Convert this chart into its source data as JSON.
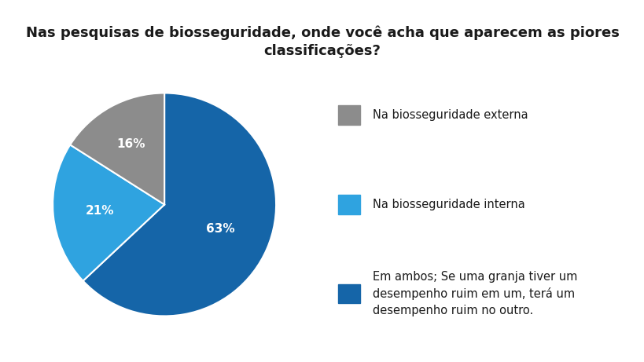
{
  "title": "Nas pesquisas de biosseguridade, onde você acha que aparecem as piores\nclassificações?",
  "slices": [
    63,
    21,
    16
  ],
  "labels": [
    "63%",
    "21%",
    "16%"
  ],
  "colors": [
    "#1565a8",
    "#2fa3e0",
    "#8c8c8c"
  ],
  "legend_labels": [
    "Na biosseguridade externa",
    "Na biosseguridade interna",
    "Em ambos; Se uma granja tiver um\ndesempenho ruim em um, terá um\ndesempenho ruim no outro."
  ],
  "legend_colors": [
    "#8c8c8c",
    "#2fa3e0",
    "#1565a8"
  ],
  "background_color": "#ffffff",
  "title_fontsize": 13,
  "label_fontsize": 11,
  "legend_fontsize": 10.5,
  "startangle": 90
}
